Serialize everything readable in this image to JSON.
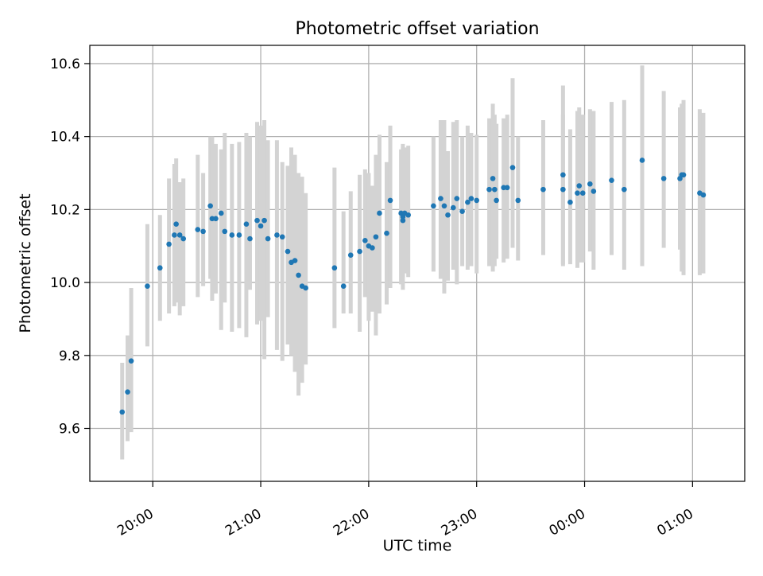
{
  "chart_data": {
    "type": "scatter",
    "title": "Photometric offset variation",
    "xlabel": "UTC time",
    "ylabel": "Photometric offset",
    "grid": true,
    "legend": "none",
    "x_axis_type": "time",
    "xlim": [
      "19:25",
      "01:29"
    ],
    "ylim": [
      9.455,
      10.65
    ],
    "xticks": [
      "20:00",
      "21:00",
      "22:00",
      "23:00",
      "00:00",
      "01:00"
    ],
    "yticks": [
      9.6,
      9.8,
      10.0,
      10.2,
      10.4,
      10.6
    ],
    "ytick_labels": [
      "9.6",
      "9.8",
      "10.0",
      "10.2",
      "10.4",
      "10.6"
    ],
    "colors": {
      "points": "#1f77b4",
      "errorbars": "#d3d3d3",
      "grid": "#b0b0b0",
      "axes": "#000000"
    },
    "series": [
      {
        "x": [
          "19:43",
          "19:46",
          "19:48",
          "19:57",
          "20:04",
          "20:09",
          "20:12",
          "20:13",
          "20:15",
          "20:17",
          "20:25",
          "20:28",
          "20:32",
          "20:33",
          "20:35",
          "20:38",
          "20:40",
          "20:44",
          "20:48",
          "20:52",
          "20:54",
          "20:58",
          "21:00",
          "21:02",
          "21:04",
          "21:09",
          "21:12",
          "21:15",
          "21:17",
          "21:19",
          "21:21",
          "21:23",
          "21:25",
          "21:41",
          "21:46",
          "21:50",
          "21:55",
          "21:58",
          "22:00",
          "22:02",
          "22:04",
          "22:06",
          "22:10",
          "22:12",
          "22:18",
          "22:19",
          "22:19",
          "22:20",
          "22:22",
          "22:36",
          "22:40",
          "22:42",
          "22:44",
          "22:47",
          "22:49",
          "22:52",
          "22:55",
          "22:57",
          "23:00",
          "23:07",
          "23:09",
          "23:10",
          "23:11",
          "23:15",
          "23:17",
          "23:20",
          "23:23",
          "23:37",
          "23:48",
          "23:48",
          "23:52",
          "23:56",
          "23:57",
          "23:59",
          "00:03",
          "00:05",
          "00:15",
          "00:22",
          "00:32",
          "00:44",
          "00:53",
          "00:54",
          "00:55",
          "01:04",
          "01:06"
        ],
        "y": [
          9.645,
          9.7,
          9.785,
          9.99,
          10.04,
          10.105,
          10.13,
          10.16,
          10.13,
          10.12,
          10.145,
          10.14,
          10.21,
          10.175,
          10.175,
          10.19,
          10.14,
          10.13,
          10.13,
          10.16,
          10.12,
          10.17,
          10.155,
          10.17,
          10.12,
          10.13,
          10.125,
          10.085,
          10.055,
          10.06,
          10.02,
          9.99,
          9.985,
          10.04,
          9.99,
          10.075,
          10.085,
          10.115,
          10.1,
          10.095,
          10.125,
          10.19,
          10.135,
          10.225,
          10.19,
          10.18,
          10.17,
          10.19,
          10.185,
          10.21,
          10.23,
          10.21,
          10.185,
          10.205,
          10.23,
          10.195,
          10.22,
          10.23,
          10.225,
          10.255,
          10.285,
          10.255,
          10.225,
          10.26,
          10.26,
          10.315,
          10.225,
          10.255,
          10.295,
          10.255,
          10.22,
          10.245,
          10.265,
          10.245,
          10.27,
          10.25,
          10.28,
          10.255,
          10.335,
          10.285,
          10.285,
          10.295,
          10.295,
          10.245,
          10.24
        ],
        "yerr_low": [
          9.515,
          9.565,
          9.59,
          9.825,
          9.895,
          9.915,
          9.935,
          9.945,
          9.91,
          9.935,
          9.96,
          9.99,
          10.01,
          9.95,
          9.97,
          9.87,
          9.945,
          9.865,
          9.875,
          9.85,
          9.98,
          9.885,
          9.895,
          9.79,
          9.905,
          9.815,
          9.785,
          9.83,
          9.8,
          9.755,
          9.69,
          9.725,
          9.775,
          9.875,
          9.915,
          9.915,
          9.865,
          9.96,
          9.895,
          9.92,
          9.855,
          9.915,
          9.94,
          9.985,
          9.995,
          9.98,
          10.015,
          10.025,
          10.015,
          10.03,
          10.01,
          9.97,
          10.005,
          10.035,
          9.995,
          10.045,
          10.035,
          10.045,
          10.025,
          10.045,
          10.03,
          10.045,
          10.065,
          10.055,
          10.065,
          10.095,
          10.06,
          10.075,
          10.045,
          10.05,
          10.05,
          10.04,
          10.055,
          10.055,
          10.085,
          10.035,
          10.075,
          10.035,
          10.045,
          10.095,
          10.09,
          10.03,
          10.02,
          10.02,
          10.025
        ],
        "yerr_high": [
          9.78,
          9.855,
          9.985,
          10.16,
          10.185,
          10.285,
          10.325,
          10.34,
          10.275,
          10.285,
          10.35,
          10.3,
          10.4,
          10.4,
          10.38,
          10.365,
          10.41,
          10.38,
          10.385,
          10.41,
          10.4,
          10.44,
          10.43,
          10.445,
          10.39,
          10.39,
          10.33,
          10.32,
          10.37,
          10.35,
          10.3,
          10.29,
          10.245,
          10.315,
          10.195,
          10.25,
          10.295,
          10.31,
          10.3,
          10.265,
          10.35,
          10.405,
          10.33,
          10.43,
          10.365,
          10.37,
          10.38,
          10.37,
          10.375,
          10.4,
          10.445,
          10.445,
          10.36,
          10.44,
          10.445,
          10.4,
          10.43,
          10.41,
          10.405,
          10.45,
          10.49,
          10.46,
          10.435,
          10.45,
          10.46,
          10.56,
          10.4,
          10.445,
          10.54,
          10.46,
          10.42,
          10.47,
          10.48,
          10.46,
          10.475,
          10.47,
          10.495,
          10.5,
          10.595,
          10.525,
          10.48,
          10.49,
          10.5,
          10.475,
          10.465
        ]
      }
    ]
  }
}
